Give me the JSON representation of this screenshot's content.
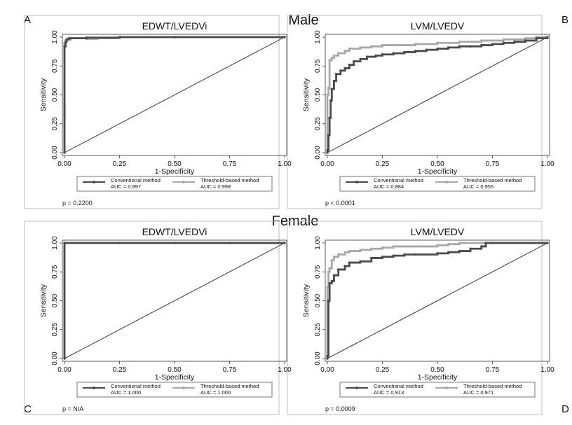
{
  "panel_letters": [
    "A",
    "B",
    "C",
    "D"
  ],
  "group_labels": {
    "male": "Male",
    "female": "Female"
  },
  "colors": {
    "conventional": "#4a4a4a",
    "threshold": "#a8a8a8",
    "reference": "#222222",
    "frame": "#bdbdbd"
  },
  "chart_data": [
    {
      "panel": "A",
      "type": "line",
      "title": "EDWT/LVEDVi",
      "xlabel": "1-Specificity",
      "ylabel": "Sensitivity",
      "xlim": [
        0,
        1
      ],
      "ylim": [
        0,
        1
      ],
      "xticks": [
        "0.00",
        "0.25",
        "0.50",
        "0.75",
        "1.00"
      ],
      "yticks": [
        "0.00",
        "0.25",
        "0.50",
        "0.75",
        "1.00"
      ],
      "grid": false,
      "legend_position": "bottom",
      "p_value": "p = 0.2200",
      "series": [
        {
          "name": "Conventional method",
          "auc": "AUC = 0.997",
          "x": [
            0,
            0,
            0,
            0,
            0.005,
            0.01,
            0.02,
            0.1,
            0.25,
            0.5,
            1.0
          ],
          "y": [
            0,
            0.33,
            0.4,
            0.92,
            0.96,
            0.98,
            0.99,
            0.995,
            1.0,
            1.0,
            1.0
          ]
        },
        {
          "name": "Threshold-based method",
          "auc": "AUC = 0.998",
          "x": [
            0,
            0,
            0,
            0.005,
            0.01,
            0.03,
            0.1,
            0.15,
            0.25,
            0.5,
            1.0
          ],
          "y": [
            0,
            0.9,
            0.95,
            0.97,
            0.98,
            0.99,
            0.985,
            0.99,
            1.0,
            1.0,
            1.0
          ]
        }
      ]
    },
    {
      "panel": "B",
      "type": "line",
      "title": "LVM/LVEDV",
      "xlabel": "1-Specificity",
      "ylabel": "Sensitivity",
      "xlim": [
        0,
        1
      ],
      "ylim": [
        0,
        1
      ],
      "xticks": [
        "0.00",
        "0.25",
        "0.50",
        "0.75",
        "1.00"
      ],
      "yticks": [
        "0.00",
        "0.25",
        "0.50",
        "0.75",
        "1.00"
      ],
      "grid": false,
      "legend_position": "bottom",
      "p_value": "p < 0.0001",
      "series": [
        {
          "name": "Conventional method",
          "auc": "AUC = 0.884",
          "x": [
            0,
            0,
            0.005,
            0.01,
            0.015,
            0.02,
            0.03,
            0.04,
            0.06,
            0.08,
            0.1,
            0.12,
            0.15,
            0.18,
            0.22,
            0.25,
            0.3,
            0.35,
            0.4,
            0.45,
            0.5,
            0.55,
            0.6,
            0.65,
            0.7,
            0.75,
            0.8,
            0.85,
            0.9,
            0.95,
            1.0
          ],
          "y": [
            0,
            0.02,
            0.15,
            0.3,
            0.45,
            0.55,
            0.62,
            0.68,
            0.71,
            0.73,
            0.76,
            0.79,
            0.81,
            0.83,
            0.84,
            0.85,
            0.86,
            0.87,
            0.88,
            0.89,
            0.9,
            0.91,
            0.92,
            0.92,
            0.93,
            0.94,
            0.95,
            0.96,
            0.97,
            0.99,
            1.0
          ]
        },
        {
          "name": "Threshold-based method",
          "auc": "AUC = 0.955",
          "x": [
            0,
            0,
            0.005,
            0.01,
            0.02,
            0.03,
            0.05,
            0.08,
            0.1,
            0.15,
            0.2,
            0.25,
            0.3,
            0.4,
            0.5,
            0.6,
            0.7,
            0.8,
            0.9,
            0.95,
            1.0
          ],
          "y": [
            0,
            0.5,
            0.56,
            0.8,
            0.82,
            0.84,
            0.86,
            0.88,
            0.9,
            0.91,
            0.92,
            0.93,
            0.93,
            0.94,
            0.95,
            0.96,
            0.97,
            0.98,
            0.99,
            1.0,
            1.0
          ]
        }
      ]
    },
    {
      "panel": "C",
      "type": "line",
      "title": "EDWT/LVEDVi",
      "xlabel": "1-Specificity",
      "ylabel": "Sensitivity",
      "xlim": [
        0,
        1
      ],
      "ylim": [
        0,
        1
      ],
      "xticks": [
        "0.00",
        "0.25",
        "0.50",
        "0.75",
        "1.00"
      ],
      "yticks": [
        "0.00",
        "0.25",
        "0.50",
        "0.75",
        "1.00"
      ],
      "grid": false,
      "legend_position": "bottom",
      "p_value": "p = N/A",
      "series": [
        {
          "name": "Conventional method",
          "auc": "AUC = 1.000",
          "x": [
            0,
            0,
            0.25,
            0.5,
            0.75,
            1.0
          ],
          "y": [
            0,
            1.0,
            1.0,
            1.0,
            1.0,
            1.0
          ]
        },
        {
          "name": "Threshold-based method",
          "auc": "AUC = 1.000",
          "x": [
            0,
            0,
            0.25,
            0.5,
            0.75,
            1.0
          ],
          "y": [
            0,
            1.0,
            1.0,
            1.0,
            1.0,
            1.0
          ]
        }
      ]
    },
    {
      "panel": "D",
      "type": "line",
      "title": "LVM/LVEDV",
      "xlabel": "1-Specificity",
      "ylabel": "Sensitivity",
      "xlim": [
        0,
        1
      ],
      "ylim": [
        0,
        1
      ],
      "xticks": [
        "0.00",
        "0.25",
        "0.50",
        "0.75",
        "1.00"
      ],
      "yticks": [
        "0.00",
        "0.25",
        "0.50",
        "0.75",
        "1.00"
      ],
      "grid": false,
      "legend_position": "bottom",
      "p_value": "p = 0.0009",
      "series": [
        {
          "name": "Conventional method",
          "auc": "AUC = 0.913",
          "x": [
            0,
            0,
            0.005,
            0.01,
            0.02,
            0.03,
            0.05,
            0.08,
            0.1,
            0.15,
            0.2,
            0.25,
            0.3,
            0.35,
            0.4,
            0.5,
            0.55,
            0.6,
            0.65,
            0.7,
            0.72,
            0.75,
            1.0
          ],
          "y": [
            0,
            0.02,
            0.5,
            0.65,
            0.67,
            0.72,
            0.77,
            0.8,
            0.83,
            0.84,
            0.87,
            0.88,
            0.89,
            0.9,
            0.9,
            0.91,
            0.92,
            0.93,
            0.95,
            0.97,
            1.0,
            1.0,
            1.0
          ]
        },
        {
          "name": "Threshold-based method",
          "auc": "AUC = 0.971",
          "x": [
            0,
            0,
            0.005,
            0.01,
            0.02,
            0.03,
            0.05,
            0.08,
            0.1,
            0.15,
            0.2,
            0.25,
            0.3,
            0.4,
            0.5,
            0.55,
            0.6,
            0.7,
            0.8,
            1.0
          ],
          "y": [
            0,
            0.62,
            0.75,
            0.78,
            0.85,
            0.88,
            0.9,
            0.92,
            0.93,
            0.94,
            0.95,
            0.96,
            0.97,
            0.97,
            0.98,
            0.99,
            1.0,
            1.0,
            1.0,
            1.0
          ]
        }
      ]
    }
  ]
}
